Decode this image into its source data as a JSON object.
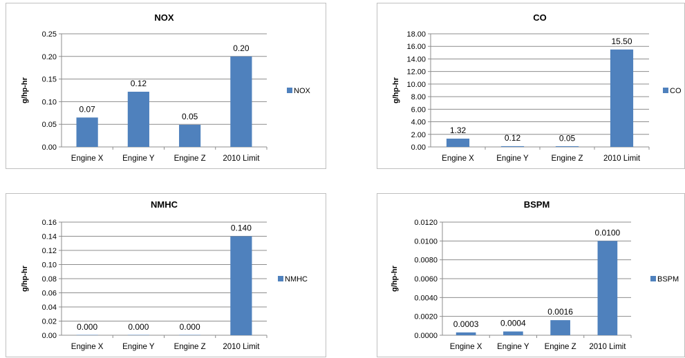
{
  "chart_data": [
    {
      "id": "nox",
      "type": "bar",
      "title": "NOX",
      "ylabel": "g/hp-hr",
      "categories": [
        "Engine X",
        "Engine Y",
        "Engine Z",
        "2010 Limit"
      ],
      "series": [
        {
          "name": "NOX",
          "values": [
            0.065,
            0.122,
            0.049,
            0.2
          ],
          "labels": [
            "0.07",
            "0.12",
            "0.05",
            "0.20"
          ]
        }
      ],
      "ylim": [
        0,
        0.25
      ],
      "yticks": [
        "0.00",
        "0.05",
        "0.10",
        "0.15",
        "0.20",
        "0.25"
      ],
      "grid": true,
      "legend": "right",
      "bar_color": "#4F81BD"
    },
    {
      "id": "co",
      "type": "bar",
      "title": "CO",
      "ylabel": "g/hp-hr",
      "categories": [
        "Engine X",
        "Engine Y",
        "Engine Z",
        "2010 Limit"
      ],
      "series": [
        {
          "name": "CO",
          "values": [
            1.32,
            0.12,
            0.05,
            15.5
          ],
          "labels": [
            "1.32",
            "0.12",
            "0.05",
            "15.50"
          ]
        }
      ],
      "ylim": [
        0,
        18
      ],
      "yticks": [
        "0.00",
        "2.00",
        "4.00",
        "6.00",
        "8.00",
        "10.00",
        "12.00",
        "14.00",
        "16.00",
        "18.00"
      ],
      "grid": true,
      "legend": "right",
      "bar_color": "#4F81BD"
    },
    {
      "id": "nmhc",
      "type": "bar",
      "title": "NMHC",
      "ylabel": "g/hp-hr",
      "categories": [
        "Engine X",
        "Engine Y",
        "Engine Z",
        "2010 Limit"
      ],
      "series": [
        {
          "name": "NMHC",
          "values": [
            0,
            0,
            0,
            0.14
          ],
          "labels": [
            "0.000",
            "0.000",
            "0.000",
            "0.140"
          ]
        }
      ],
      "ylim": [
        0,
        0.16
      ],
      "yticks": [
        "0.00",
        "0.02",
        "0.04",
        "0.06",
        "0.08",
        "0.10",
        "0.12",
        "0.14",
        "0.16"
      ],
      "grid": true,
      "legend": "right",
      "bar_color": "#4F81BD"
    },
    {
      "id": "bspm",
      "type": "bar",
      "title": "BSPM",
      "ylabel": "g/hp-hr",
      "categories": [
        "Engine X",
        "Engine Y",
        "Engine Z",
        "2010 Limit"
      ],
      "series": [
        {
          "name": "BSPM",
          "values": [
            0.0003,
            0.0004,
            0.0016,
            0.01
          ],
          "labels": [
            "0.0003",
            "0.0004",
            "0.0016",
            "0.0100"
          ]
        }
      ],
      "ylim": [
        0,
        0.012
      ],
      "yticks": [
        "0.0000",
        "0.0020",
        "0.0040",
        "0.0060",
        "0.0080",
        "0.0100",
        "0.0120"
      ],
      "grid": true,
      "legend": "right",
      "bar_color": "#4F81BD"
    }
  ]
}
